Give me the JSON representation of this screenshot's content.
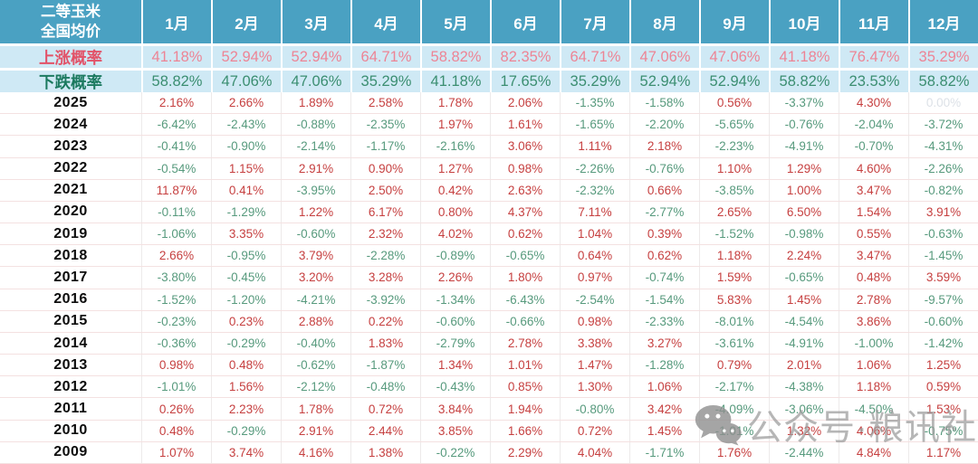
{
  "chart_data": {
    "type": "table",
    "title": "二等玉米全国均价",
    "corner_header": [
      "二等玉米",
      "全国均价"
    ],
    "months": [
      "1月",
      "2月",
      "3月",
      "4月",
      "5月",
      "6月",
      "7月",
      "8月",
      "9月",
      "10月",
      "11月",
      "12月"
    ],
    "probability_rows": [
      {
        "kind": "up",
        "label": "上涨概率",
        "values": [
          "41.18%",
          "52.94%",
          "52.94%",
          "64.71%",
          "58.82%",
          "82.35%",
          "64.71%",
          "47.06%",
          "47.06%",
          "41.18%",
          "76.47%",
          "35.29%"
        ]
      },
      {
        "kind": "down",
        "label": "下跌概率",
        "values": [
          "58.82%",
          "47.06%",
          "47.06%",
          "35.29%",
          "41.18%",
          "17.65%",
          "35.29%",
          "52.94%",
          "52.94%",
          "58.82%",
          "23.53%",
          "58.82%"
        ]
      }
    ],
    "year_rows": [
      {
        "year": "2025",
        "values": [
          "2.16%",
          "2.66%",
          "1.89%",
          "2.58%",
          "1.78%",
          "2.06%",
          "-1.35%",
          "-1.58%",
          "0.56%",
          "-3.37%",
          "4.30%",
          "0.00%"
        ]
      },
      {
        "year": "2024",
        "values": [
          "-6.42%",
          "-2.43%",
          "-0.88%",
          "-2.35%",
          "1.97%",
          "1.61%",
          "-1.65%",
          "-2.20%",
          "-5.65%",
          "-0.76%",
          "-2.04%",
          "-3.72%"
        ]
      },
      {
        "year": "2023",
        "values": [
          "-0.41%",
          "-0.90%",
          "-2.14%",
          "-1.17%",
          "-2.16%",
          "3.06%",
          "1.11%",
          "2.18%",
          "-2.23%",
          "-4.91%",
          "-0.70%",
          "-4.31%"
        ]
      },
      {
        "year": "2022",
        "values": [
          "-0.54%",
          "1.15%",
          "2.91%",
          "0.90%",
          "1.27%",
          "0.98%",
          "-2.26%",
          "-0.76%",
          "1.10%",
          "1.29%",
          "4.60%",
          "-2.26%"
        ]
      },
      {
        "year": "2021",
        "values": [
          "11.87%",
          "0.41%",
          "-3.95%",
          "2.50%",
          "0.42%",
          "2.63%",
          "-2.32%",
          "0.66%",
          "-3.85%",
          "1.00%",
          "3.47%",
          "-0.82%"
        ]
      },
      {
        "year": "2020",
        "values": [
          "-0.11%",
          "-1.29%",
          "1.22%",
          "6.17%",
          "0.80%",
          "4.37%",
          "7.11%",
          "-2.77%",
          "2.65%",
          "6.50%",
          "1.54%",
          "3.91%"
        ]
      },
      {
        "year": "2019",
        "values": [
          "-1.06%",
          "3.35%",
          "-0.60%",
          "2.32%",
          "4.02%",
          "0.62%",
          "1.04%",
          "0.39%",
          "-1.52%",
          "-0.98%",
          "0.55%",
          "-0.63%"
        ]
      },
      {
        "year": "2018",
        "values": [
          "2.66%",
          "-0.95%",
          "3.79%",
          "-2.28%",
          "-0.89%",
          "-0.65%",
          "0.64%",
          "0.62%",
          "1.18%",
          "2.24%",
          "3.47%",
          "-1.45%"
        ]
      },
      {
        "year": "2017",
        "values": [
          "-3.80%",
          "-0.45%",
          "3.20%",
          "3.28%",
          "2.26%",
          "1.80%",
          "0.97%",
          "-0.74%",
          "1.59%",
          "-0.65%",
          "0.48%",
          "3.59%"
        ]
      },
      {
        "year": "2016",
        "values": [
          "-1.52%",
          "-1.20%",
          "-4.21%",
          "-3.92%",
          "-1.34%",
          "-6.43%",
          "-2.54%",
          "-1.54%",
          "5.83%",
          "1.45%",
          "2.78%",
          "-9.57%"
        ]
      },
      {
        "year": "2015",
        "values": [
          "-0.23%",
          "0.23%",
          "2.88%",
          "0.22%",
          "-0.60%",
          "-0.66%",
          "0.98%",
          "-2.33%",
          "-8.01%",
          "-4.54%",
          "3.86%",
          "-0.60%"
        ]
      },
      {
        "year": "2014",
        "values": [
          "-0.36%",
          "-0.29%",
          "-0.40%",
          "1.83%",
          "-2.79%",
          "2.78%",
          "3.38%",
          "3.27%",
          "-3.61%",
          "-4.91%",
          "-1.00%",
          "-1.42%"
        ]
      },
      {
        "year": "2013",
        "values": [
          "0.98%",
          "0.48%",
          "-0.62%",
          "-1.87%",
          "1.34%",
          "1.01%",
          "1.47%",
          "-1.28%",
          "0.79%",
          "2.01%",
          "1.06%",
          "1.25%"
        ]
      },
      {
        "year": "2012",
        "values": [
          "-1.01%",
          "1.56%",
          "-2.12%",
          "-0.48%",
          "-0.43%",
          "0.85%",
          "1.30%",
          "1.06%",
          "-2.17%",
          "-4.38%",
          "1.18%",
          "0.59%"
        ]
      },
      {
        "year": "2011",
        "values": [
          "0.26%",
          "2.23%",
          "1.78%",
          "0.72%",
          "3.84%",
          "1.94%",
          "-0.80%",
          "3.42%",
          "-4.09%",
          "-3.06%",
          "-4.50%",
          "1.53%"
        ]
      },
      {
        "year": "2010",
        "values": [
          "0.48%",
          "-0.29%",
          "2.91%",
          "2.44%",
          "3.85%",
          "1.66%",
          "0.72%",
          "1.45%",
          "-1.01%",
          "1.32%",
          "4.06%",
          "-0.75%"
        ]
      },
      {
        "year": "2009",
        "values": [
          "1.07%",
          "3.74%",
          "4.16%",
          "1.38%",
          "-0.22%",
          "2.29%",
          "4.04%",
          "-1.71%",
          "1.76%",
          "-2.44%",
          "4.84%",
          "1.17%"
        ]
      }
    ]
  },
  "watermark": {
    "icon": "wechat-icon",
    "text": "公众号·粮讯社"
  },
  "colors": {
    "header_bg": "#4aa1c2",
    "prob_bg": "#cfe9f5",
    "up_label": "#e25268",
    "up_value": "#ed8495",
    "down_label": "#1c7a60",
    "down_value": "#3b8e71",
    "positive": "#c64040",
    "negative": "#579a7d",
    "zero": "#dce1e7"
  }
}
